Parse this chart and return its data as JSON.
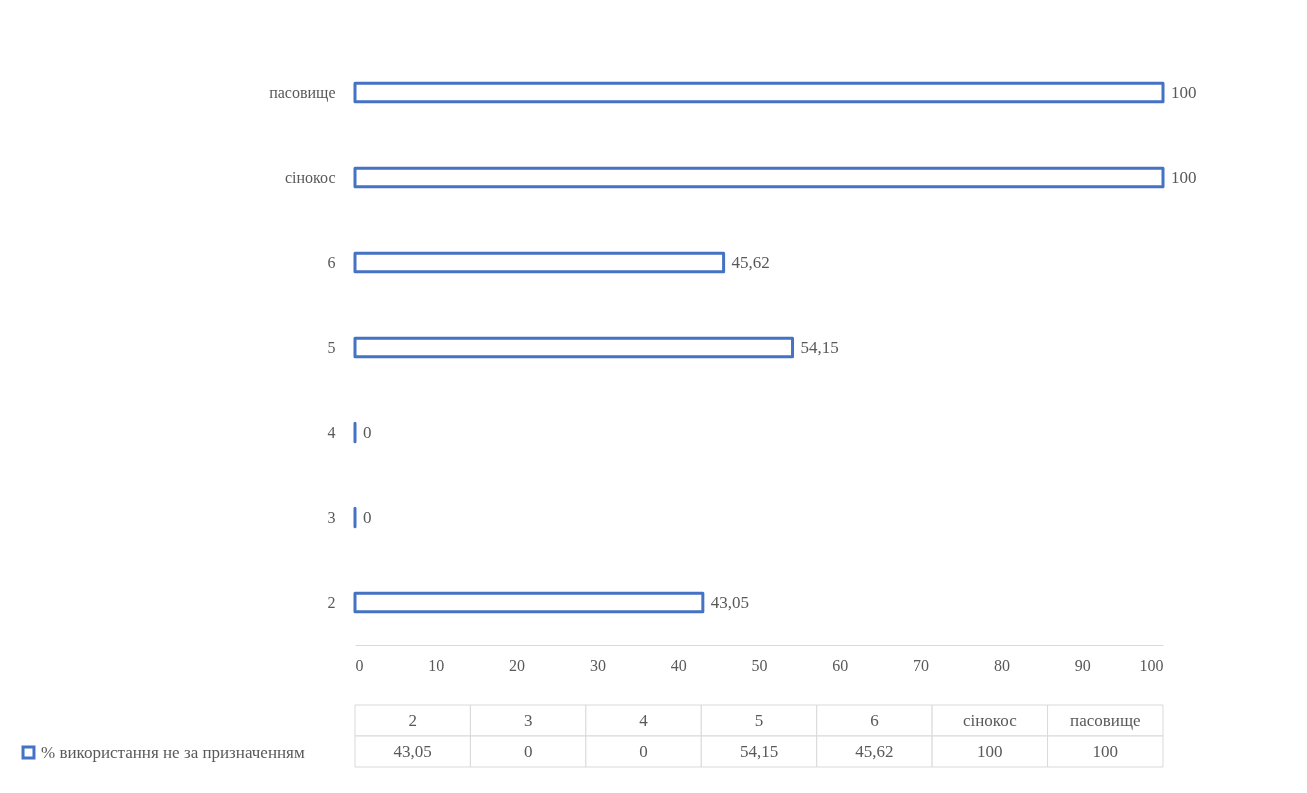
{
  "chart_data": {
    "type": "bar",
    "orientation": "horizontal",
    "categories": [
      "пасовище",
      "сінокос",
      "6",
      "5",
      "4",
      "3",
      "2"
    ],
    "series": [
      {
        "name": "% використання не за призначенням",
        "color": "#4472c4",
        "values": [
          100,
          100,
          45.62,
          54.15,
          0,
          0,
          43.05
        ],
        "value_labels": [
          "100",
          "100",
          "45,62",
          "54,15",
          "0",
          "0",
          "43,05"
        ]
      }
    ],
    "xlim": [
      0,
      100
    ],
    "xticks": [
      0,
      10,
      20,
      30,
      40,
      50,
      60,
      70,
      80,
      90,
      100
    ],
    "grid": false,
    "legend": "bottom"
  }
}
